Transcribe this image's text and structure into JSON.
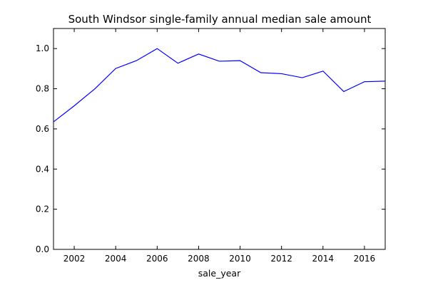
{
  "chart_data": {
    "type": "line",
    "title": "South Windsor single-family annual median sale amount",
    "xlabel": "sale_year",
    "ylabel": "",
    "xlim": [
      2001,
      2017
    ],
    "ylim": [
      0.0,
      1.1
    ],
    "xticks": [
      2002,
      2004,
      2006,
      2008,
      2010,
      2012,
      2014,
      2016
    ],
    "xtick_labels": [
      "2002",
      "2004",
      "2006",
      "2008",
      "2010",
      "2012",
      "2014",
      "2016"
    ],
    "yticks": [
      0.0,
      0.2,
      0.4,
      0.6,
      0.8,
      1.0
    ],
    "ytick_labels": [
      "0.0",
      "0.2",
      "0.4",
      "0.6",
      "0.8",
      "1.0"
    ],
    "grid": false,
    "legend": "none",
    "series": [
      {
        "color": "#0000ff",
        "x": [
          2001,
          2002,
          2003,
          2004,
          2005,
          2006,
          2007,
          2008,
          2009,
          2010,
          2011,
          2012,
          2013,
          2014,
          2015,
          2016,
          2017
        ],
        "y": [
          0.635,
          0.715,
          0.8,
          0.901,
          0.94,
          1.0,
          0.927,
          0.973,
          0.937,
          0.94,
          0.88,
          0.875,
          0.855,
          0.888,
          0.786,
          0.835,
          0.838
        ]
      }
    ]
  }
}
